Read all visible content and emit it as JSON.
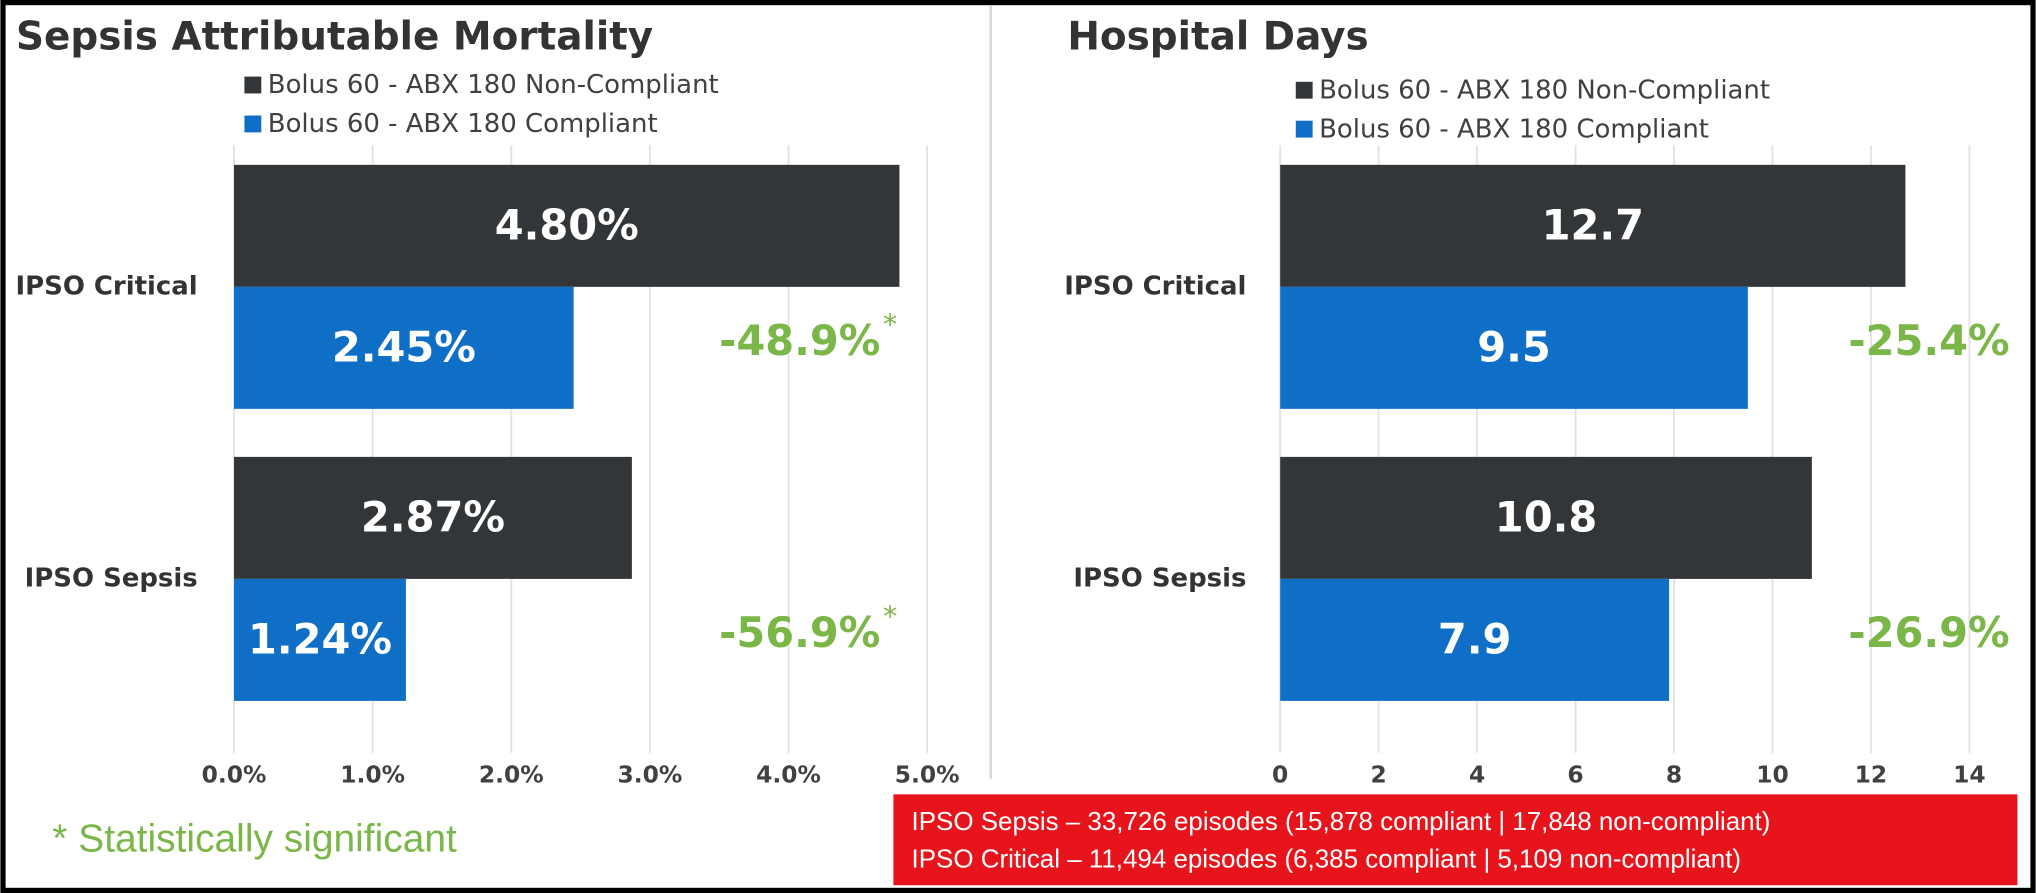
{
  "chart_data": [
    {
      "type": "hbar",
      "title": "Sepsis Attributable Mortality",
      "categories": [
        "IPSO Critical",
        "IPSO Sepsis"
      ],
      "series": [
        {
          "name": "Bolus 60 - ABX 180 Non-Compliant",
          "color": "#323639",
          "values": [
            4.8,
            2.87
          ],
          "value_labels": [
            "4.80%",
            "2.87%"
          ]
        },
        {
          "name": "Bolus 60 - ABX 180 Compliant",
          "color": "#0f6fc6",
          "values": [
            2.45,
            1.24
          ],
          "value_labels": [
            "2.45%",
            "1.24%"
          ]
        }
      ],
      "xlim": [
        0,
        5
      ],
      "xticks": [
        {
          "value": 0,
          "label": "0.0%"
        },
        {
          "value": 1,
          "label": "1.0%"
        },
        {
          "value": 2,
          "label": "2.0%"
        },
        {
          "value": 3,
          "label": "3.0%"
        },
        {
          "value": 4,
          "label": "4.0%"
        },
        {
          "value": 5,
          "label": "5.0%"
        }
      ],
      "grid": true,
      "changes": [
        "-48.9%",
        "-56.9%"
      ],
      "change_marks": [
        "*",
        "*"
      ],
      "change_color": "#7ab648",
      "footnote": "* Statistically significant"
    },
    {
      "type": "hbar",
      "title": "Hospital Days",
      "categories": [
        "IPSO Critical",
        "IPSO Sepsis"
      ],
      "series": [
        {
          "name": "Bolus 60 - ABX 180 Non-Compliant",
          "color": "#323639",
          "values": [
            12.7,
            10.8
          ]
        },
        {
          "name": "Bolus 60 - ABX 180 Compliant",
          "color": "#0f6fc6",
          "values": [
            9.5,
            7.9
          ]
        }
      ],
      "xlim": [
        0,
        14
      ],
      "xticks": [
        0,
        2,
        4,
        6,
        8,
        10,
        12,
        14
      ],
      "grid": true,
      "changes": [
        "-25.4%",
        "-26.9%"
      ],
      "change_color": "#7ab648"
    }
  ],
  "episodes": [
    "IPSO Sepsis – 33,726 episodes (15,878 compliant | 17,848 non-compliant)",
    "IPSO Critical – 11,494 episodes (6,385 compliant | 5,109 non-compliant)"
  ]
}
